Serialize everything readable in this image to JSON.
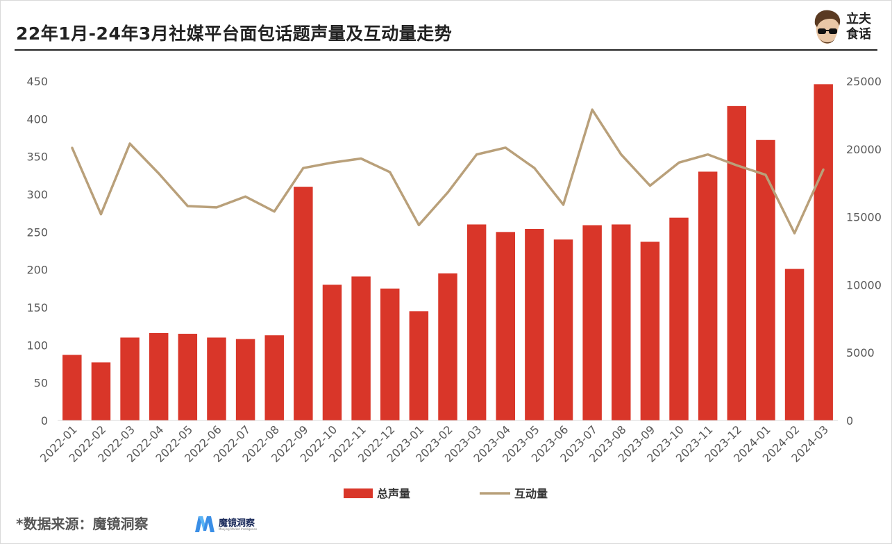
{
  "header": {
    "title": "22年1月-24年3月社媒平台面包话题声量及互动量走势",
    "logo_line1": "立夫",
    "logo_line2": "食话"
  },
  "footer": {
    "source": "*数据来源：魔镜洞察",
    "brand_name": "魔镜洞察",
    "brand_subtitle": "Moojing Market Intelligence"
  },
  "colors": {
    "bar": "#D93629",
    "line": "#B9A07A",
    "axis_text": "#595959"
  },
  "chart_data": {
    "type": "bar",
    "title": "22年1月-24年3月社媒平台面包话题声量及互动量走势",
    "categories": [
      "2022-01",
      "2022-02",
      "2022-03",
      "2022-04",
      "2022-05",
      "2022-06",
      "2022-07",
      "2022-08",
      "2022-09",
      "2022-10",
      "2022-11",
      "2022-12",
      "2023-01",
      "2023-02",
      "2023-03",
      "2023-04",
      "2023-05",
      "2023-06",
      "2023-07",
      "2023-08",
      "2023-09",
      "2023-10",
      "2023-11",
      "2023-12",
      "2024-01",
      "2024-02",
      "2024-03"
    ],
    "series": [
      {
        "name": "总声量",
        "type": "bar",
        "axis": "left",
        "values": [
          87,
          77,
          110,
          116,
          115,
          110,
          108,
          113,
          310,
          180,
          191,
          175,
          145,
          195,
          260,
          250,
          254,
          240,
          259,
          260,
          237,
          269,
          330,
          417,
          372,
          201,
          446
        ]
      },
      {
        "name": "互动量",
        "type": "line",
        "axis": "right",
        "values": [
          20100,
          15200,
          20400,
          18200,
          15800,
          15700,
          16500,
          15400,
          18600,
          19000,
          19300,
          18300,
          14400,
          16800,
          19600,
          20100,
          18600,
          15900,
          22900,
          19600,
          17300,
          19000,
          19600,
          18800,
          18100,
          13800,
          18500
        ]
      }
    ],
    "y_left": {
      "min": 0,
      "max": 450,
      "ticks": [
        0,
        50,
        100,
        150,
        200,
        250,
        300,
        350,
        400,
        450
      ]
    },
    "y_right": {
      "min": 0,
      "max": 25000,
      "ticks": [
        0,
        5000,
        10000,
        15000,
        20000,
        25000
      ]
    },
    "grid": false,
    "legend_position": "bottom"
  }
}
